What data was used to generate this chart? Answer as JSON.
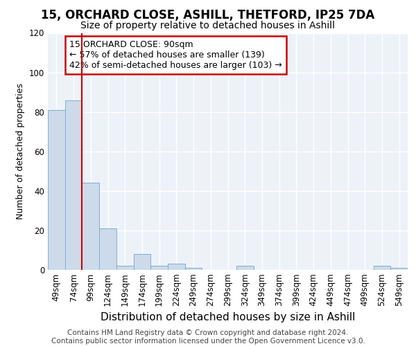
{
  "title1": "15, ORCHARD CLOSE, ASHILL, THETFORD, IP25 7DA",
  "title2": "Size of property relative to detached houses in Ashill",
  "xlabel": "Distribution of detached houses by size in Ashill",
  "ylabel": "Number of detached properties",
  "categories": [
    "49sqm",
    "74sqm",
    "99sqm",
    "124sqm",
    "149sqm",
    "174sqm",
    "199sqm",
    "224sqm",
    "249sqm",
    "274sqm",
    "299sqm",
    "324sqm",
    "349sqm",
    "374sqm",
    "399sqm",
    "424sqm",
    "449sqm",
    "474sqm",
    "499sqm",
    "524sqm",
    "549sqm"
  ],
  "values": [
    81,
    86,
    44,
    21,
    2,
    8,
    2,
    3,
    1,
    0,
    0,
    2,
    0,
    0,
    0,
    0,
    0,
    0,
    0,
    2,
    1
  ],
  "bar_color": "#ccdaea",
  "bar_edge_color": "#7bafd4",
  "bar_width": 1.0,
  "ylim": [
    0,
    120
  ],
  "yticks": [
    0,
    20,
    40,
    60,
    80,
    100,
    120
  ],
  "property_line_index": 2,
  "property_line_color": "#cc0000",
  "annotation_text": "15 ORCHARD CLOSE: 90sqm\n← 57% of detached houses are smaller (139)\n42% of semi-detached houses are larger (103) →",
  "annotation_box_color": "#cc0000",
  "background_color": "#edf2f9",
  "grid_color": "#ffffff",
  "footer_text": "Contains HM Land Registry data © Crown copyright and database right 2024.\nContains public sector information licensed under the Open Government Licence v3.0.",
  "title1_fontsize": 12,
  "title2_fontsize": 10,
  "xlabel_fontsize": 11,
  "ylabel_fontsize": 9,
  "annotation_fontsize": 9,
  "tick_fontsize": 8.5,
  "footer_fontsize": 7.5
}
